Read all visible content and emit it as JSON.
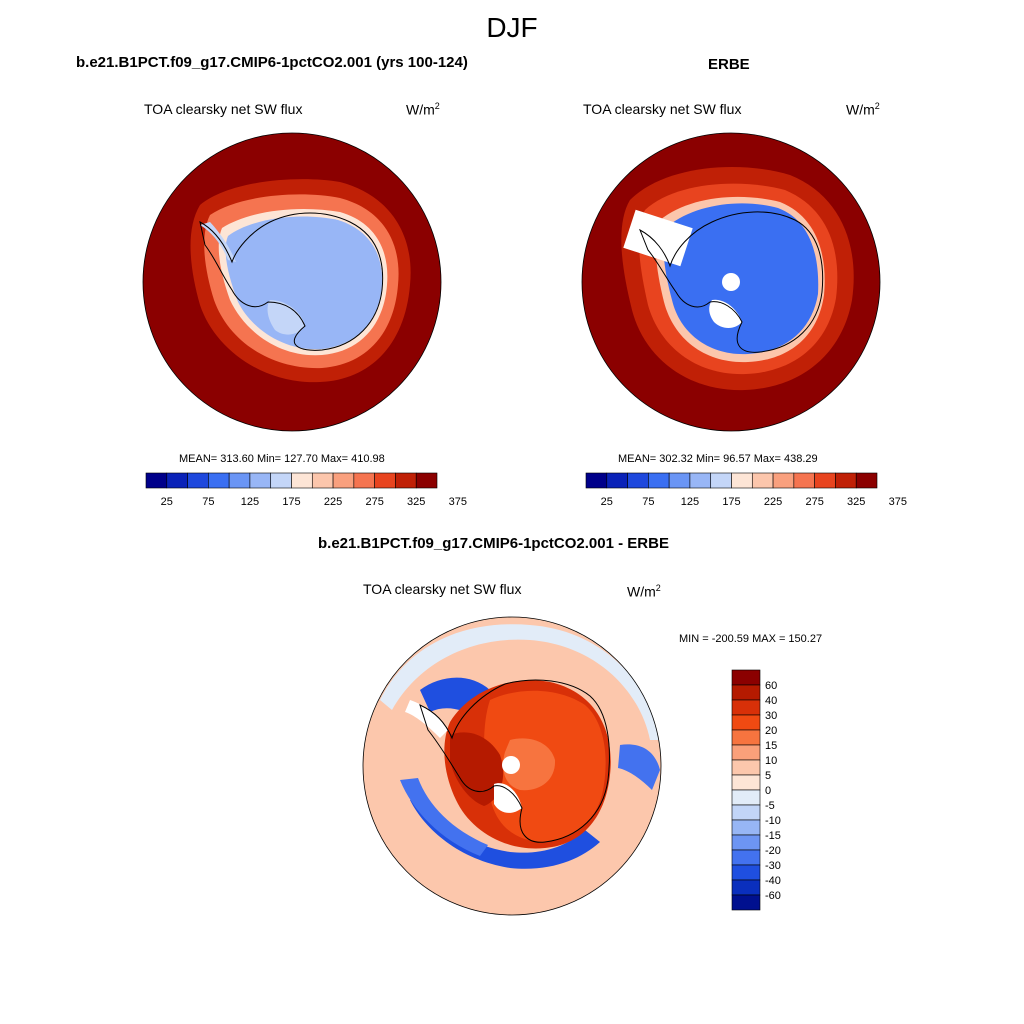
{
  "page": {
    "title": "DJF"
  },
  "panels": [
    {
      "case_title": "b.e21.B1PCT.f09_g17.CMIP6-1pctCO2.001 (yrs 100-124)",
      "variable": "TOA clearsky net SW flux",
      "units_base": "W/m",
      "units_exp": "2",
      "stats": "MEAN= 313.60  Min= 127.70  Max= 410.98"
    },
    {
      "case_title": "ERBE",
      "variable": "TOA clearsky net SW flux",
      "units_base": "W/m",
      "units_exp": "2",
      "stats": "MEAN= 302.32  Min=  96.57  Max= 438.29"
    }
  ],
  "diff_panel": {
    "case_title": "b.e21.B1PCT.f09_g17.CMIP6-1pctCO2.001 - ERBE",
    "variable": "TOA clearsky net SW flux",
    "units_base": "W/m",
    "units_exp": "2",
    "stats": "MIN = -200.59 MAX = 150.27"
  },
  "colorbar_top": {
    "tick_labels": [
      "25",
      "75",
      "125",
      "175",
      "225",
      "275",
      "325",
      "375"
    ],
    "colors": [
      "#00008a",
      "#0a22b8",
      "#1e48dd",
      "#3a6ff2",
      "#6a95f5",
      "#98b6f6",
      "#c4d6f8",
      "#fde5d6",
      "#fcc6ac",
      "#f9a07e",
      "#f57450",
      "#e8441f",
      "#c02006",
      "#8b0000"
    ]
  },
  "colorbar_diff": {
    "levels": [
      "60",
      "40",
      "30",
      "20",
      "15",
      "10",
      "5",
      "0",
      "-5",
      "-10",
      "-15",
      "-20",
      "-30",
      "-40",
      "-60"
    ],
    "colors": [
      "#8b0000",
      "#b51a00",
      "#d83008",
      "#f04a12",
      "#f7743f",
      "#faa07a",
      "#fcc7ac",
      "#fde5d6",
      "#e2ecf8",
      "#c2d5f7",
      "#97b6f5",
      "#6d95f3",
      "#4372ef",
      "#1f4fe0",
      "#0a2fbd",
      "#00108f"
    ]
  },
  "chart_data": {
    "type": "map",
    "projection": "south polar stereographic",
    "season": "DJF",
    "maps": [
      {
        "name": "b.e21.B1PCT.f09_g17.CMIP6-1pctCO2.001 (yrs 100-124)",
        "field": "TOA clearsky net SW flux",
        "units": "W/m2",
        "mean": 313.6,
        "min": 127.7,
        "max": 410.98,
        "contour_levels": [
          25,
          50,
          75,
          100,
          125,
          150,
          175,
          200,
          225,
          250,
          275,
          300,
          325,
          350,
          375
        ]
      },
      {
        "name": "ERBE",
        "field": "TOA clearsky net SW flux",
        "units": "W/m2",
        "mean": 302.32,
        "min": 96.57,
        "max": 438.29,
        "contour_levels": [
          25,
          50,
          75,
          100,
          125,
          150,
          175,
          200,
          225,
          250,
          275,
          300,
          325,
          350,
          375
        ]
      },
      {
        "name": "b.e21.B1PCT.f09_g17.CMIP6-1pctCO2.001 - ERBE",
        "field": "TOA clearsky net SW flux",
        "units": "W/m2",
        "min": -200.59,
        "max": 150.27,
        "contour_levels": [
          -60,
          -40,
          -30,
          -20,
          -15,
          -10,
          -5,
          0,
          5,
          10,
          15,
          20,
          30,
          40,
          60
        ]
      }
    ]
  }
}
